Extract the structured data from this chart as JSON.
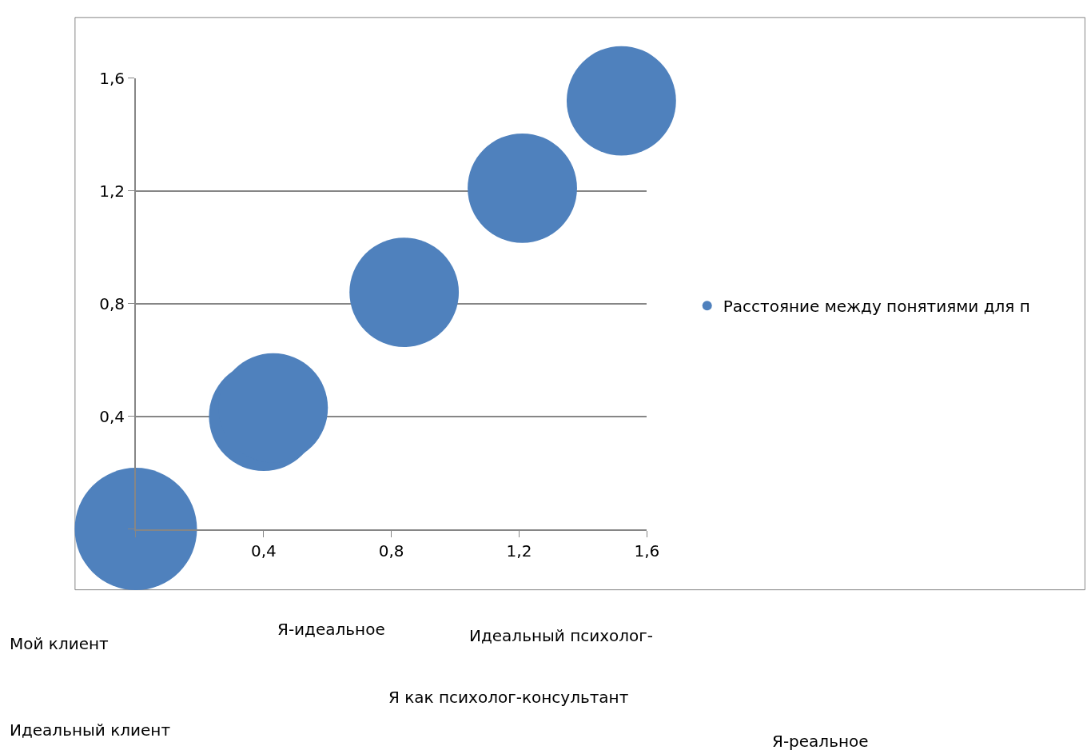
{
  "chart_data": {
    "type": "bubble",
    "x": [
      0,
      0.4,
      0.43,
      0.84,
      1.21,
      1.52
    ],
    "series": [
      {
        "name": "Расстояние между понятиями для п",
        "color": "#4f81bd",
        "values": [
          0,
          0.4,
          0.43,
          0.84,
          1.21,
          1.52
        ],
        "sizes": [
          1,
          0.8,
          0.8,
          0.8,
          0.8,
          0.8
        ]
      }
    ],
    "xlim": [
      0,
      1.6
    ],
    "ylim": [
      0,
      1.6
    ],
    "xticks": [
      {
        "value": 0,
        "label": null
      },
      {
        "value": 0.4,
        "label": "0,4"
      },
      {
        "value": 0.8,
        "label": "0,8"
      },
      {
        "value": 1.2,
        "label": "1,2"
      },
      {
        "value": 1.6,
        "label": "1,6"
      }
    ],
    "yticks": [
      {
        "value": 0,
        "label": null
      },
      {
        "value": 0.4,
        "label": "0,4"
      },
      {
        "value": 0.8,
        "label": "0,8"
      },
      {
        "value": 1.2,
        "label": "1,2"
      },
      {
        "value": 1.6,
        "label": "1,6"
      }
    ],
    "grid": "y",
    "legend": "right",
    "marker": "circle",
    "annotations": [
      "Мой клиент",
      "Я-идеальное",
      "Идеальный психолог-",
      "Я как психолог-консультант",
      "Идеальный клиент",
      "Я-реальное"
    ]
  }
}
